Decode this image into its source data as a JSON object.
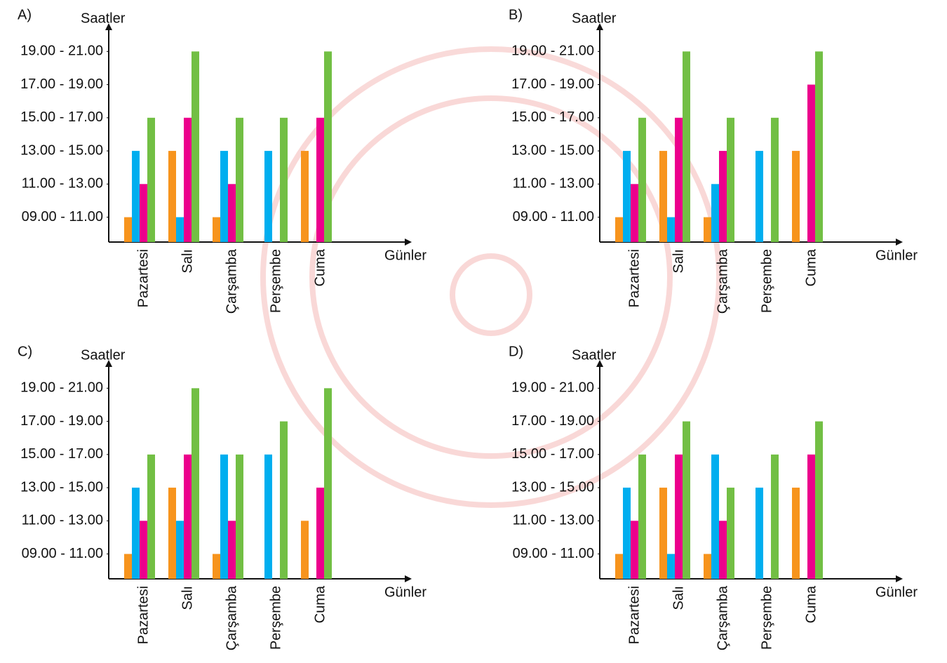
{
  "chart_data": [
    {
      "type": "bar",
      "title": "A)",
      "ylabel": "Saatler",
      "xlabel": "Günler",
      "categories": [
        "Pazartesi",
        "Salı",
        "Çarşamba",
        "Perşembe",
        "Cuma"
      ],
      "series": [
        {
          "color": "#f7941d",
          "values": [
            1,
            3,
            1,
            null,
            3
          ]
        },
        {
          "color": "#00aeef",
          "values": [
            3,
            1,
            3,
            3,
            null
          ]
        },
        {
          "color": "#ec008c",
          "values": [
            2,
            4,
            2,
            null,
            4
          ]
        },
        {
          "color": "#72bf44",
          "values": [
            4,
            6,
            4,
            4,
            6
          ]
        }
      ],
      "ylim": [
        0.25,
        6.6
      ],
      "yticks": [
        {
          "value": 1,
          "label": "09.00 - 11.00"
        },
        {
          "value": 2,
          "label": "11.00 - 13.00"
        },
        {
          "value": 3,
          "label": "13.00 - 15.00"
        },
        {
          "value": 4,
          "label": "15.00 - 17.00"
        },
        {
          "value": 5,
          "label": "17.00 - 19.00"
        },
        {
          "value": 6,
          "label": "19.00 - 21.00"
        }
      ]
    },
    {
      "type": "bar",
      "title": "B)",
      "ylabel": "Saatler",
      "xlabel": "Günler",
      "categories": [
        "Pazartesi",
        "Salı",
        "Çarşamba",
        "Perşembe",
        "Cuma"
      ],
      "series": [
        {
          "color": "#f7941d",
          "values": [
            1,
            3,
            1,
            null,
            3
          ]
        },
        {
          "color": "#00aeef",
          "values": [
            3,
            1,
            2,
            3,
            null
          ]
        },
        {
          "color": "#ec008c",
          "values": [
            2,
            4,
            3,
            null,
            5
          ]
        },
        {
          "color": "#72bf44",
          "values": [
            4,
            6,
            4,
            4,
            6
          ]
        }
      ],
      "ylim": [
        0.25,
        6.6
      ],
      "yticks": [
        {
          "value": 1,
          "label": "09.00 - 11.00"
        },
        {
          "value": 2,
          "label": "11.00 - 13.00"
        },
        {
          "value": 3,
          "label": "13.00 - 15.00"
        },
        {
          "value": 4,
          "label": "15.00 - 17.00"
        },
        {
          "value": 5,
          "label": "17.00 - 19.00"
        },
        {
          "value": 6,
          "label": "19.00 - 21.00"
        }
      ]
    },
    {
      "type": "bar",
      "title": "C)",
      "ylabel": "Saatler",
      "xlabel": "Günler",
      "categories": [
        "Pazartesi",
        "Salı",
        "Çarşamba",
        "Perşembe",
        "Cuma"
      ],
      "series": [
        {
          "color": "#f7941d",
          "values": [
            1,
            3,
            1,
            null,
            2
          ]
        },
        {
          "color": "#00aeef",
          "values": [
            3,
            2,
            4,
            4,
            null
          ]
        },
        {
          "color": "#ec008c",
          "values": [
            2,
            4,
            2,
            null,
            3
          ]
        },
        {
          "color": "#72bf44",
          "values": [
            4,
            6,
            4,
            5,
            6
          ]
        }
      ],
      "ylim": [
        0.25,
        6.6
      ],
      "yticks": [
        {
          "value": 1,
          "label": "09.00 - 11.00"
        },
        {
          "value": 2,
          "label": "11.00 - 13.00"
        },
        {
          "value": 3,
          "label": "13.00 - 15.00"
        },
        {
          "value": 4,
          "label": "15.00 - 17.00"
        },
        {
          "value": 5,
          "label": "17.00 - 19.00"
        },
        {
          "value": 6,
          "label": "19.00 - 21.00"
        }
      ]
    },
    {
      "type": "bar",
      "title": "D)",
      "ylabel": "Saatler",
      "xlabel": "Günler",
      "categories": [
        "Pazartesi",
        "Salı",
        "Çarşamba",
        "Perşembe",
        "Cuma"
      ],
      "series": [
        {
          "color": "#f7941d",
          "values": [
            1,
            3,
            1,
            null,
            3
          ]
        },
        {
          "color": "#00aeef",
          "values": [
            3,
            1,
            4,
            3,
            null
          ]
        },
        {
          "color": "#ec008c",
          "values": [
            2,
            4,
            2,
            null,
            4
          ]
        },
        {
          "color": "#72bf44",
          "values": [
            4,
            5,
            3,
            4,
            5
          ]
        }
      ],
      "ylim": [
        0.25,
        6.6
      ],
      "yticks": [
        {
          "value": 1,
          "label": "09.00 - 11.00"
        },
        {
          "value": 2,
          "label": "11.00 - 13.00"
        },
        {
          "value": 3,
          "label": "13.00 - 15.00"
        },
        {
          "value": 4,
          "label": "15.00 - 17.00"
        },
        {
          "value": 5,
          "label": "17.00 - 19.00"
        },
        {
          "value": 6,
          "label": "19.00 - 21.00"
        }
      ]
    }
  ]
}
